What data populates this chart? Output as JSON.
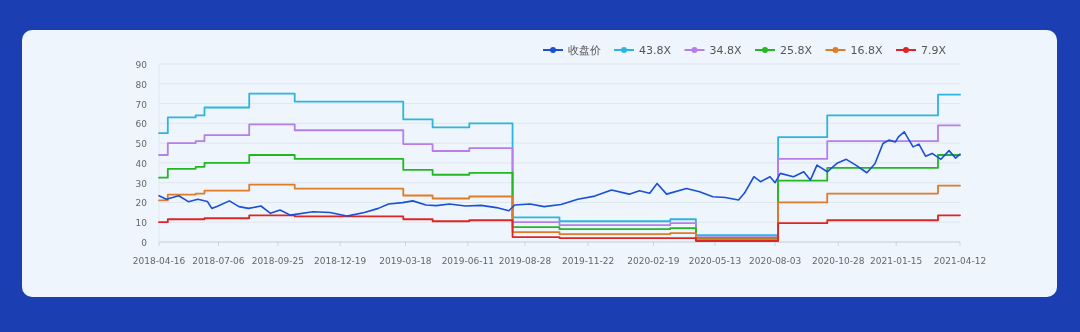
{
  "chart_data": {
    "type": "line",
    "x": [
      "2018-04-16",
      "2018-04-28",
      "2018-06-05",
      "2018-06-17",
      "2018-08-17",
      "2018-10-18",
      "2019-03-15",
      "2019-04-24",
      "2019-06-13",
      "2019-08-11",
      "2019-10-14",
      "2020-03-13",
      "2020-04-17",
      "2020-08-07",
      "2020-10-13",
      "2021-03-13",
      "2021-04-12"
    ],
    "series": [
      {
        "name": "收盘价",
        "type": "line",
        "color": "#1a4fd6",
        "x": [
          "2018-04-16",
          "2018-04-26",
          "2018-05-13",
          "2018-05-26",
          "2018-06-08",
          "2018-06-21",
          "2018-06-27",
          "2018-07-04",
          "2018-07-21",
          "2018-08-03",
          "2018-08-16",
          "2018-09-02",
          "2018-09-15",
          "2018-09-28",
          "2018-10-12",
          "2018-11-12",
          "2018-12-05",
          "2018-12-28",
          "2019-01-21",
          "2019-02-09",
          "2019-02-23",
          "2019-03-14",
          "2019-03-28",
          "2019-04-15",
          "2019-04-29",
          "2019-05-17",
          "2019-06-08",
          "2019-06-29",
          "2019-07-20",
          "2019-08-06",
          "2019-08-14",
          "2019-09-04",
          "2019-09-23",
          "2019-10-16",
          "2019-11-08",
          "2019-12-01",
          "2019-12-24",
          "2020-01-17",
          "2020-01-31",
          "2020-02-14",
          "2020-02-24",
          "2020-03-08",
          "2020-04-04",
          "2020-04-22",
          "2020-05-10",
          "2020-05-27",
          "2020-06-14",
          "2020-06-22",
          "2020-07-05",
          "2020-07-14",
          "2020-07-27",
          "2020-08-03",
          "2020-08-10",
          "2020-08-28",
          "2020-09-11",
          "2020-09-20",
          "2020-09-29",
          "2020-10-13",
          "2020-10-27",
          "2020-11-08",
          "2020-11-21",
          "2020-12-06",
          "2020-12-17",
          "2020-12-28",
          "2021-01-05",
          "2021-01-14",
          "2021-01-18",
          "2021-01-26",
          "2021-02-07",
          "2021-02-15",
          "2021-02-24",
          "2021-03-05",
          "2021-03-17",
          "2021-03-28",
          "2021-04-06",
          "2021-04-12"
        ],
        "values": [
          23.4,
          21.6,
          23.4,
          20.4,
          21.6,
          20.5,
          17,
          17.9,
          20.8,
          17.9,
          17,
          18.2,
          14.5,
          16.2,
          13.6,
          15.3,
          14.9,
          13.1,
          14.9,
          17,
          19.2,
          19.9,
          20.8,
          18.7,
          18.4,
          19.2,
          18.2,
          18.5,
          17.4,
          15.8,
          18.7,
          19.2,
          17.9,
          19,
          21.6,
          23.2,
          26.3,
          24.2,
          25.9,
          24.6,
          29.6,
          24.2,
          27.1,
          25.4,
          22.9,
          22.5,
          21.2,
          24.6,
          33,
          30.5,
          33,
          30,
          34.7,
          33,
          35.5,
          31.3,
          38.9,
          35.5,
          40,
          41.8,
          38.9,
          35,
          39.6,
          49.8,
          51.5,
          50.6,
          53.2,
          55.7,
          48.1,
          49.5,
          43.4,
          44.8,
          41.8,
          46.2,
          42.4,
          44.4
        ]
      },
      {
        "name": "43.8X",
        "type": "step",
        "color": "#2bb5e0",
        "values": [
          55,
          63,
          64,
          68,
          75,
          71,
          62,
          58,
          60,
          12.5,
          10.5,
          11.5,
          3.5,
          53,
          64,
          74.5,
          74.5
        ]
      },
      {
        "name": "34.8X",
        "type": "step",
        "color": "#b57ee8",
        "values": [
          44,
          50,
          51,
          54,
          59.5,
          56.5,
          49.5,
          46,
          47.5,
          10,
          8.5,
          9.5,
          2.5,
          42,
          51,
          59,
          59
        ]
      },
      {
        "name": "25.8X",
        "type": "step",
        "color": "#22b822",
        "values": [
          32.5,
          37,
          38,
          40,
          44,
          42,
          36.5,
          34,
          35,
          7.5,
          6.5,
          7,
          2,
          31,
          37.5,
          44,
          44
        ]
      },
      {
        "name": "16.8X",
        "type": "step",
        "color": "#e07b28",
        "values": [
          21,
          24,
          24.5,
          26,
          29,
          27,
          23.5,
          22,
          23,
          5,
          4,
          4.5,
          1.5,
          20,
          24.5,
          28.5,
          28.5
        ]
      },
      {
        "name": "7.9X",
        "type": "step",
        "color": "#e02424",
        "values": [
          10,
          11.5,
          11.5,
          12,
          13.5,
          13,
          11.5,
          10.5,
          11,
          2.5,
          2,
          2,
          0.5,
          9.5,
          11,
          13.5,
          13.5
        ]
      }
    ],
    "xlim": [
      "2018-04-16",
      "2021-04-12"
    ],
    "xticks": [
      "2018-04-16",
      "2018-07-06",
      "2018-09-25",
      "2018-12-19",
      "2019-03-18",
      "2019-06-11",
      "2019-08-28",
      "2019-11-22",
      "2020-02-19",
      "2020-05-13",
      "2020-08-03",
      "2020-10-28",
      "2021-01-15",
      "2021-04-12"
    ],
    "ylim": [
      0,
      90
    ],
    "yticks": [
      0,
      10,
      20,
      30,
      40,
      50,
      60,
      70,
      80,
      90
    ],
    "grid": "y",
    "legend": "top right"
  }
}
